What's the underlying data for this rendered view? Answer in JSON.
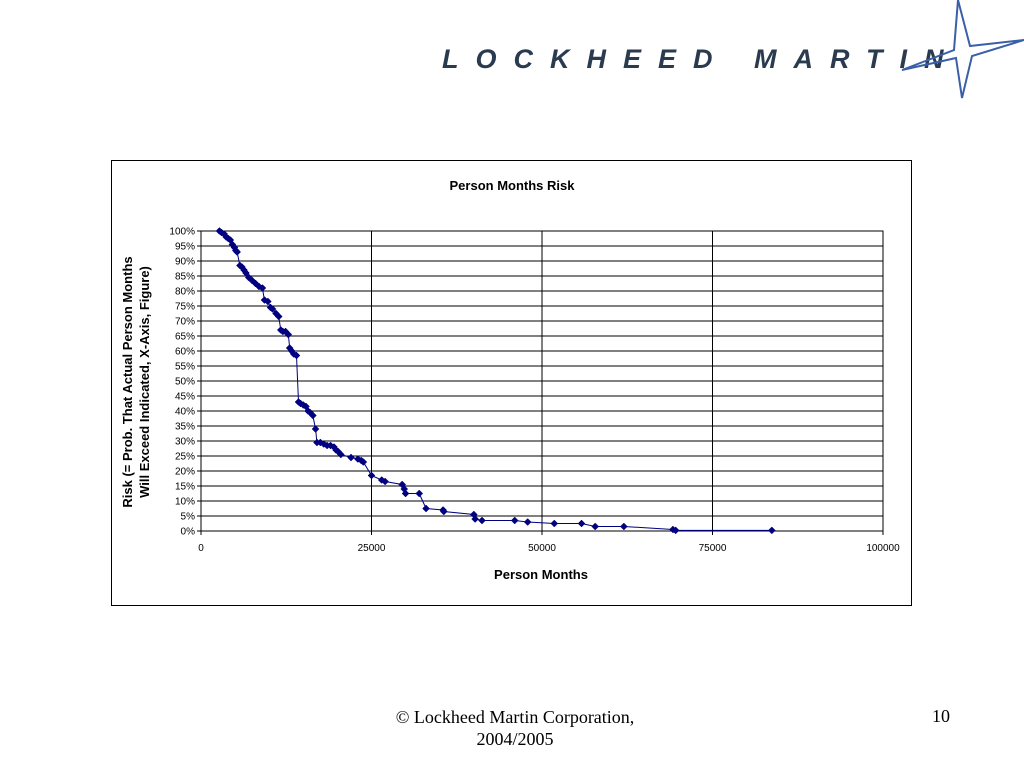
{
  "header": {
    "logo_text": "LOCKHEED MARTIN",
    "logo_color": "#2a3b4f",
    "star_color": "#3b5fa8"
  },
  "footer": {
    "copyright": "© Lockheed Martin Corporation, 2004/2005",
    "page_number": "10"
  },
  "chart_data": {
    "type": "line",
    "title": "Person Months Risk",
    "xlabel": "Person Months",
    "ylabel": [
      "Risk (= Prob. That Actual Person Months",
      "Will Exceed Indicated, X-Axis, Figure)"
    ],
    "xlim": [
      0,
      100000
    ],
    "ylim": [
      0,
      100
    ],
    "x_ticks": [
      0,
      25000,
      50000,
      75000,
      100000
    ],
    "x_tick_labels": [
      "0",
      "25000",
      "50000",
      "75000",
      "100000"
    ],
    "y_ticks": [
      0,
      5,
      10,
      15,
      20,
      25,
      30,
      35,
      40,
      45,
      50,
      55,
      60,
      65,
      70,
      75,
      80,
      85,
      90,
      95,
      100
    ],
    "y_tick_labels": [
      "0%",
      "5%",
      "10%",
      "15%",
      "20%",
      "25%",
      "30%",
      "35%",
      "40%",
      "45%",
      "50%",
      "55%",
      "60%",
      "65%",
      "70%",
      "75%",
      "80%",
      "85%",
      "90%",
      "95%",
      "100%"
    ],
    "grid": true,
    "legend": "none",
    "line_color": "#000080",
    "marker": "diamond",
    "series": [
      {
        "x": [
          2700,
          3000,
          3400,
          3700,
          4000,
          4300,
          4600,
          4900,
          5100,
          5300,
          5700,
          6000,
          6300,
          6600,
          7000,
          7500,
          8000,
          8500,
          9000,
          9300,
          9800,
          10200,
          10500,
          11000,
          11400,
          11700,
          12000,
          12400,
          12800,
          13000,
          13300,
          13600,
          14000,
          14300,
          14600,
          15000,
          15400,
          15700,
          16000,
          16400,
          16800,
          17000,
          17500,
          18000,
          18500,
          19000,
          19500,
          19800,
          20100,
          20500,
          22000,
          23000,
          23500,
          23800,
          25000,
          26500,
          27000,
          29500,
          29800,
          30000,
          32000,
          33000,
          35500,
          35600,
          40000,
          40200,
          41200,
          46000,
          47900,
          51800,
          55800,
          57800,
          62000,
          69200,
          69600,
          83700
        ],
        "y": [
          100,
          99.5,
          99,
          98,
          97.5,
          97,
          95.5,
          94.5,
          93.5,
          93,
          88.5,
          88,
          87,
          86,
          84.5,
          83.5,
          82.5,
          81.5,
          81,
          77,
          76.5,
          74.5,
          74,
          72.5,
          71.5,
          67,
          66.5,
          66.5,
          65.5,
          61,
          60,
          59,
          58.5,
          43,
          42.5,
          42,
          41.5,
          40,
          39.5,
          38.5,
          34,
          29.5,
          29.5,
          29,
          28.5,
          28.5,
          28,
          27,
          26.5,
          25.5,
          24.5,
          24,
          23.5,
          23,
          18.5,
          17,
          16.5,
          15.5,
          14,
          12.5,
          12.5,
          7.5,
          7,
          6.5,
          5.5,
          4,
          3.5,
          3.5,
          3,
          2.5,
          2.5,
          1.5,
          1.5,
          0.5,
          0.2,
          0.2
        ]
      }
    ]
  }
}
